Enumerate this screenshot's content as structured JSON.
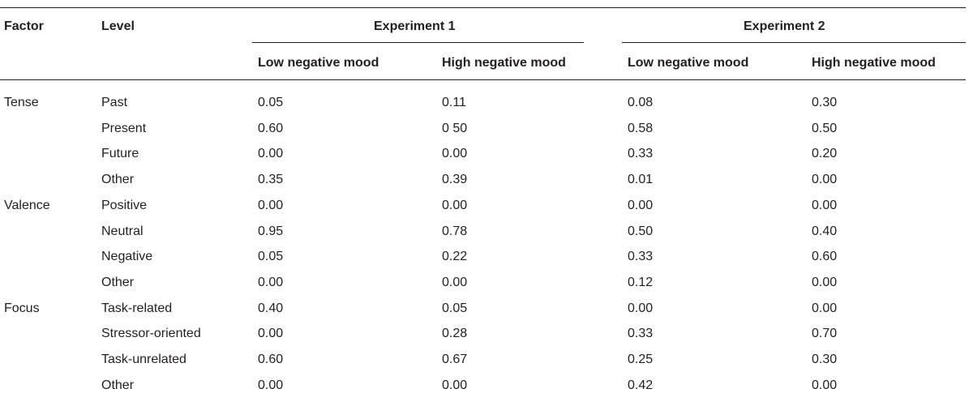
{
  "header": {
    "factor": "Factor",
    "level": "Level",
    "experiment1": "Experiment 1",
    "experiment2": "Experiment 2",
    "subheaders": [
      "Low negative mood",
      "High negative mood",
      "Low negative mood",
      "High negative mood"
    ]
  },
  "rows": [
    {
      "factor": "Tense",
      "level": "Past",
      "values": [
        "0.05",
        "0.11",
        "0.08",
        "0.30"
      ]
    },
    {
      "factor": "",
      "level": "Present",
      "values": [
        "0.60",
        "0 50",
        "0.58",
        "0.50"
      ]
    },
    {
      "factor": "",
      "level": "Future",
      "values": [
        "0.00",
        "0.00",
        "0.33",
        "0.20"
      ]
    },
    {
      "factor": "",
      "level": "Other",
      "values": [
        "0.35",
        "0.39",
        "0.01",
        "0.00"
      ]
    },
    {
      "factor": "Valence",
      "level": "Positive",
      "values": [
        "0.00",
        "0.00",
        "0.00",
        "0.00"
      ]
    },
    {
      "factor": "",
      "level": "Neutral",
      "values": [
        "0.95",
        "0.78",
        "0.50",
        "0.40"
      ]
    },
    {
      "factor": "",
      "level": "Negative",
      "values": [
        "0.05",
        "0.22",
        "0.33",
        "0.60"
      ]
    },
    {
      "factor": "",
      "level": "Other",
      "values": [
        "0.00",
        "0.00",
        "0.12",
        "0.00"
      ]
    },
    {
      "factor": "Focus",
      "level": "Task-related",
      "values": [
        "0.40",
        "0.05",
        "0.00",
        "0.00"
      ]
    },
    {
      "factor": "",
      "level": "Stressor-oriented",
      "values": [
        "0.00",
        "0.28",
        "0.33",
        "0.70"
      ]
    },
    {
      "factor": "",
      "level": "Task-unrelated",
      "values": [
        "0.60",
        "0.67",
        "0.25",
        "0.30"
      ]
    },
    {
      "factor": "",
      "level": "Other",
      "values": [
        "0.00",
        "0.00",
        "0.42",
        "0.00"
      ]
    }
  ]
}
